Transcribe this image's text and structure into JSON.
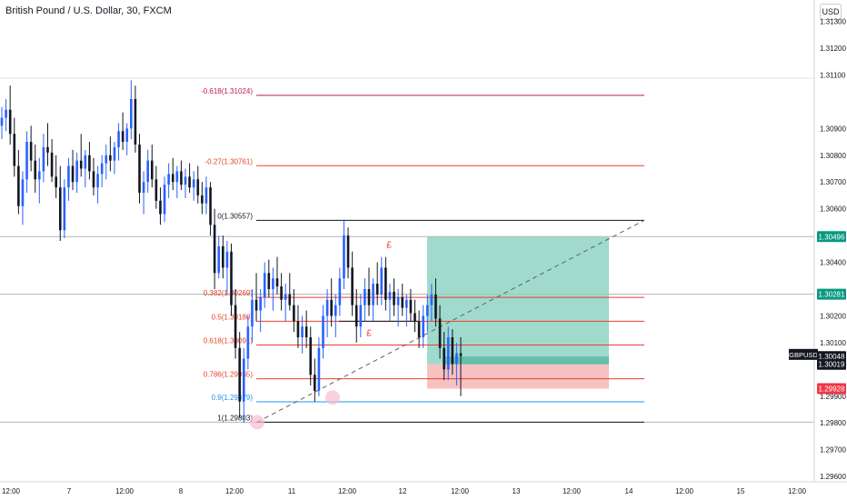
{
  "header": {
    "title": "British Pound / U.S. Dollar, 30, FXCM",
    "currency_button": "USD"
  },
  "colors": {
    "up": "#2962ff",
    "down": "#131722",
    "fib_red": "#e8412a",
    "fib_dark": "#131722",
    "fib_blue": "#2196f3",
    "fib_crimson": "#c2185b",
    "profit_zone": "#8fd3c3",
    "loss_zone": "#f7b6b6",
    "price_label_green": "#089981",
    "price_label_red": "#f23645"
  },
  "chart_data": {
    "type": "candlestick",
    "symbol": "GBPUSD",
    "ylim": [
      1.2958,
      1.3138
    ],
    "y_ticks": [
      "1.31300",
      "1.31200",
      "1.31100",
      "1.30900",
      "1.30800",
      "1.30700",
      "1.30600",
      "1.30400",
      "1.30200",
      "1.30100",
      "1.29900",
      "1.29800",
      "1.29700",
      "1.29600"
    ],
    "x_ticks": [
      "12:00",
      "7",
      "12:00",
      "8",
      "12:00",
      "11",
      "12:00",
      "12",
      "12:00",
      "13",
      "12:00",
      "14",
      "12:00",
      "15",
      "12:00"
    ],
    "fib_levels": [
      {
        "label": "-0.618(1.31024)",
        "price": 1.31024,
        "color": "#c2185b"
      },
      {
        "label": "-0.27(1.30761)",
        "price": 1.30761,
        "color": "#e8412a"
      },
      {
        "label": "0(1.30557)",
        "price": 1.30557,
        "color": "#131722"
      },
      {
        "label": "0.382(1.30269)",
        "price": 1.30269,
        "color": "#e8412a"
      },
      {
        "label": "0.5(1.30180)",
        "price": 1.3018,
        "color": "#e8412a"
      },
      {
        "label": "0.618(1.30091)",
        "price": 1.30091,
        "color": "#e8412a"
      },
      {
        "label": "0.786(1.29965)",
        "price": 1.29965,
        "color": "#e8412a"
      },
      {
        "label": "0.9(1.29879)",
        "price": 1.29879,
        "color": "#2196f3"
      },
      {
        "label": "1(1.29803)",
        "price": 1.29803,
        "color": "#131722"
      }
    ],
    "horizontal_lines": [
      1.30496,
      1.30281,
      1.29803
    ],
    "position": {
      "entry": 1.30019,
      "target": 1.30496,
      "stop": 1.29928
    },
    "price_labels": [
      {
        "text": "1.30496",
        "price": 1.30496,
        "color": "#089981"
      },
      {
        "text": "1.30281",
        "price": 1.30281,
        "color": "#089981"
      },
      {
        "text": "GBPUSD",
        "price": 1.30056,
        "color": "#ffffff",
        "kind": "symbol"
      },
      {
        "text": "1.30048",
        "price": 1.30048,
        "color": "#131722"
      },
      {
        "text": "1.30019",
        "price": 1.30019,
        "color": "#131722"
      },
      {
        "text": "1.29928",
        "price": 1.29928,
        "color": "#f23645"
      }
    ],
    "markers": [
      "£",
      "£"
    ],
    "candles": [
      [
        1.3091,
        1.3098,
        1.3086,
        1.3094
      ],
      [
        1.3094,
        1.3101,
        1.3089,
        1.3097
      ],
      [
        1.3097,
        1.3106,
        1.3084,
        1.3088
      ],
      [
        1.3088,
        1.3094,
        1.3072,
        1.3076
      ],
      [
        1.3076,
        1.3082,
        1.3058,
        1.3061
      ],
      [
        1.3061,
        1.3074,
        1.3054,
        1.3071
      ],
      [
        1.3071,
        1.3089,
        1.3066,
        1.3085
      ],
      [
        1.3085,
        1.3091,
        1.3074,
        1.3078
      ],
      [
        1.3078,
        1.3084,
        1.3066,
        1.3071
      ],
      [
        1.3071,
        1.3079,
        1.3062,
        1.3074
      ],
      [
        1.3074,
        1.3088,
        1.307,
        1.3083
      ],
      [
        1.3083,
        1.3092,
        1.3076,
        1.3081
      ],
      [
        1.3081,
        1.3086,
        1.307,
        1.3072
      ],
      [
        1.3072,
        1.308,
        1.3064,
        1.3068
      ],
      [
        1.3068,
        1.3076,
        1.3048,
        1.3052
      ],
      [
        1.3052,
        1.3071,
        1.3049,
        1.3068
      ],
      [
        1.3068,
        1.3079,
        1.3063,
        1.3076
      ],
      [
        1.3076,
        1.3082,
        1.3067,
        1.307
      ],
      [
        1.307,
        1.3081,
        1.3066,
        1.3078
      ],
      [
        1.3078,
        1.3088,
        1.3072,
        1.3075
      ],
      [
        1.3075,
        1.3082,
        1.3068,
        1.308
      ],
      [
        1.308,
        1.3085,
        1.3071,
        1.3074
      ],
      [
        1.3074,
        1.3079,
        1.3065,
        1.3068
      ],
      [
        1.3068,
        1.3076,
        1.3062,
        1.3073
      ],
      [
        1.3073,
        1.308,
        1.3068,
        1.3077
      ],
      [
        1.3077,
        1.3084,
        1.3071,
        1.308
      ],
      [
        1.308,
        1.3087,
        1.3074,
        1.3078
      ],
      [
        1.3078,
        1.3085,
        1.3073,
        1.3083
      ],
      [
        1.3083,
        1.3092,
        1.3078,
        1.3089
      ],
      [
        1.3089,
        1.3096,
        1.3082,
        1.3085
      ],
      [
        1.3085,
        1.3092,
        1.308,
        1.309
      ],
      [
        1.309,
        1.3108,
        1.3086,
        1.3101
      ],
      [
        1.3101,
        1.3106,
        1.3081,
        1.3084
      ],
      [
        1.3084,
        1.3088,
        1.3062,
        1.3066
      ],
      [
        1.3066,
        1.3074,
        1.3058,
        1.307
      ],
      [
        1.307,
        1.3082,
        1.3066,
        1.3078
      ],
      [
        1.3078,
        1.3084,
        1.3068,
        1.3071
      ],
      [
        1.3071,
        1.3076,
        1.306,
        1.3063
      ],
      [
        1.3063,
        1.3068,
        1.3054,
        1.3058
      ],
      [
        1.3058,
        1.3072,
        1.3055,
        1.3069
      ],
      [
        1.3069,
        1.3077,
        1.3064,
        1.3073
      ],
      [
        1.3073,
        1.3079,
        1.3067,
        1.307
      ],
      [
        1.307,
        1.3076,
        1.3064,
        1.3074
      ],
      [
        1.3074,
        1.3078,
        1.3067,
        1.3069
      ],
      [
        1.3069,
        1.3075,
        1.3064,
        1.3072
      ],
      [
        1.3072,
        1.3077,
        1.3066,
        1.3068
      ],
      [
        1.3068,
        1.3074,
        1.3063,
        1.3071
      ],
      [
        1.3071,
        1.3076,
        1.3062,
        1.3065
      ],
      [
        1.3065,
        1.307,
        1.3058,
        1.3062
      ],
      [
        1.3062,
        1.3072,
        1.3058,
        1.3068
      ],
      [
        1.3068,
        1.307,
        1.305,
        1.3054
      ],
      [
        1.3054,
        1.306,
        1.303,
        1.3036
      ],
      [
        1.3036,
        1.305,
        1.3034,
        1.3046
      ],
      [
        1.3046,
        1.305,
        1.3034,
        1.3038
      ],
      [
        1.3038,
        1.3048,
        1.3028,
        1.3044
      ],
      [
        1.3044,
        1.3047,
        1.302,
        1.3024
      ],
      [
        1.3024,
        1.303,
        1.3004,
        1.3008
      ],
      [
        1.3008,
        1.3014,
        1.2982,
        1.2988
      ],
      [
        1.2988,
        1.3008,
        1.298,
        1.3004
      ],
      [
        1.3004,
        1.302,
        1.3,
        1.3016
      ],
      [
        1.3016,
        1.303,
        1.301,
        1.3026
      ],
      [
        1.3026,
        1.3036,
        1.3018,
        1.3022
      ],
      [
        1.3022,
        1.303,
        1.3014,
        1.3027
      ],
      [
        1.3027,
        1.304,
        1.3023,
        1.3036
      ],
      [
        1.3036,
        1.3041,
        1.3027,
        1.303
      ],
      [
        1.303,
        1.3038,
        1.3022,
        1.3034
      ],
      [
        1.3034,
        1.3042,
        1.3028,
        1.3031
      ],
      [
        1.3031,
        1.3036,
        1.3022,
        1.3026
      ],
      [
        1.3026,
        1.3032,
        1.3018,
        1.3028
      ],
      [
        1.3028,
        1.3036,
        1.3022,
        1.3024
      ],
      [
        1.3024,
        1.303,
        1.3014,
        1.3018
      ],
      [
        1.3018,
        1.3024,
        1.3008,
        1.3012
      ],
      [
        1.3012,
        1.302,
        1.3006,
        1.3016
      ],
      [
        1.3016,
        1.3022,
        1.3008,
        1.3012
      ],
      [
        1.3012,
        1.3016,
        1.2994,
        1.2998
      ],
      [
        1.2998,
        1.3004,
        1.2988,
        1.2992
      ],
      [
        1.2992,
        1.3012,
        1.299,
        1.3008
      ],
      [
        1.3008,
        1.3024,
        1.3004,
        1.302
      ],
      [
        1.302,
        1.303,
        1.3012,
        1.3026
      ],
      [
        1.3026,
        1.3034,
        1.3016,
        1.302
      ],
      [
        1.302,
        1.3028,
        1.3012,
        1.3024
      ],
      [
        1.3024,
        1.3038,
        1.302,
        1.3034
      ],
      [
        1.3034,
        1.3056,
        1.303,
        1.305
      ],
      [
        1.305,
        1.3053,
        1.3034,
        1.3038
      ],
      [
        1.3038,
        1.3044,
        1.302,
        1.3024
      ],
      [
        1.3024,
        1.303,
        1.301,
        1.3016
      ],
      [
        1.3016,
        1.3028,
        1.3012,
        1.3024
      ],
      [
        1.3024,
        1.3034,
        1.3018,
        1.303
      ],
      [
        1.303,
        1.3038,
        1.302,
        1.3024
      ],
      [
        1.3024,
        1.3034,
        1.3018,
        1.3032
      ],
      [
        1.3032,
        1.304,
        1.3024,
        1.3028
      ],
      [
        1.3028,
        1.3042,
        1.3024,
        1.3038
      ],
      [
        1.3038,
        1.3042,
        1.3022,
        1.3026
      ],
      [
        1.3026,
        1.3032,
        1.3018,
        1.3029
      ],
      [
        1.3029,
        1.3034,
        1.302,
        1.3024
      ],
      [
        1.3024,
        1.303,
        1.3016,
        1.3027
      ],
      [
        1.3027,
        1.3032,
        1.302,
        1.3023
      ],
      [
        1.3023,
        1.3028,
        1.3016,
        1.3026
      ],
      [
        1.3026,
        1.303,
        1.3018,
        1.3021
      ],
      [
        1.3021,
        1.3026,
        1.3014,
        1.3018
      ],
      [
        1.3018,
        1.3022,
        1.3008,
        1.3012
      ],
      [
        1.3012,
        1.3024,
        1.3008,
        1.302
      ],
      [
        1.302,
        1.3028,
        1.3014,
        1.3024
      ],
      [
        1.3024,
        1.3032,
        1.3018,
        1.3028
      ],
      [
        1.3028,
        1.3034,
        1.3016,
        1.3019
      ],
      [
        1.3019,
        1.3024,
        1.3004,
        1.3008
      ],
      [
        1.3008,
        1.3014,
        1.2996,
        1.3
      ],
      [
        1.3,
        1.3016,
        1.2996,
        1.3012
      ],
      [
        1.3012,
        1.3015,
        1.2998,
        1.3002
      ],
      [
        1.3002,
        1.301,
        1.2994,
        1.3006
      ],
      [
        1.3006,
        1.3012,
        1.299,
        1.3005
      ]
    ]
  }
}
